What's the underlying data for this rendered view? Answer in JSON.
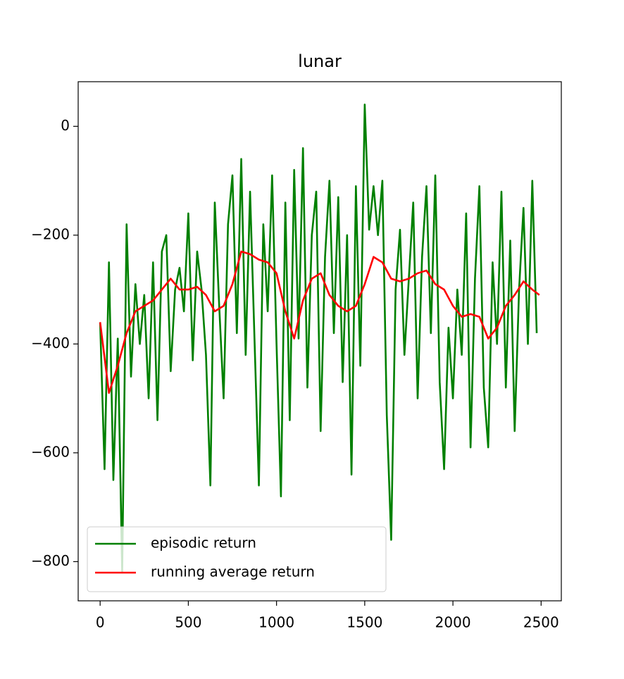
{
  "chart_data": {
    "type": "line",
    "title": "lunar",
    "xlim": [
      -124.5,
      2614.5
    ],
    "xticks": [
      0,
      500,
      1000,
      1500,
      2000,
      2500
    ],
    "ylim": [
      -872,
      82
    ],
    "yticks": [
      {
        "value": -800,
        "label": "−800"
      },
      {
        "value": -600,
        "label": "−600"
      },
      {
        "value": -400,
        "label": "−400"
      },
      {
        "value": -200,
        "label": "−200"
      },
      0
    ],
    "legend": "lower left",
    "series": [
      {
        "name": "episodic return",
        "color": "#008000",
        "x": [
          0,
          25,
          50,
          75,
          100,
          125,
          150,
          175,
          200,
          225,
          250,
          275,
          300,
          325,
          350,
          375,
          400,
          425,
          450,
          475,
          500,
          525,
          550,
          575,
          600,
          625,
          650,
          675,
          700,
          725,
          750,
          775,
          800,
          825,
          850,
          875,
          900,
          925,
          950,
          975,
          1000,
          1025,
          1050,
          1075,
          1100,
          1125,
          1150,
          1175,
          1200,
          1225,
          1250,
          1275,
          1300,
          1325,
          1350,
          1375,
          1400,
          1425,
          1450,
          1475,
          1500,
          1525,
          1550,
          1575,
          1600,
          1625,
          1650,
          1675,
          1700,
          1725,
          1750,
          1775,
          1800,
          1825,
          1850,
          1875,
          1900,
          1925,
          1950,
          1975,
          2000,
          2025,
          2050,
          2075,
          2100,
          2125,
          2150,
          2175,
          2200,
          2225,
          2250,
          2275,
          2300,
          2325,
          2350,
          2375,
          2400,
          2425,
          2450,
          2475
        ],
        "values": [
          -360,
          -630,
          -250,
          -650,
          -390,
          -820,
          -180,
          -460,
          -290,
          -400,
          -310,
          -500,
          -250,
          -540,
          -230,
          -200,
          -450,
          -300,
          -260,
          -340,
          -160,
          -430,
          -230,
          -300,
          -420,
          -660,
          -140,
          -330,
          -500,
          -180,
          -90,
          -380,
          -60,
          -420,
          -120,
          -390,
          -660,
          -180,
          -340,
          -90,
          -400,
          -680,
          -140,
          -540,
          -80,
          -390,
          -40,
          -480,
          -200,
          -120,
          -560,
          -240,
          -100,
          -380,
          -130,
          -470,
          -200,
          -640,
          -110,
          -440,
          40,
          -190,
          -110,
          -200,
          -100,
          -530,
          -760,
          -300,
          -190,
          -420,
          -280,
          -140,
          -500,
          -240,
          -110,
          -380,
          -90,
          -470,
          -630,
          -370,
          -500,
          -300,
          -420,
          -160,
          -590,
          -280,
          -110,
          -480,
          -590,
          -250,
          -400,
          -120,
          -480,
          -210,
          -560,
          -300,
          -150,
          -400,
          -100,
          -380
        ]
      },
      {
        "name": "running average return",
        "color": "#ff0000",
        "x": [
          0,
          50,
          100,
          150,
          200,
          250,
          300,
          350,
          400,
          450,
          500,
          550,
          600,
          650,
          700,
          750,
          800,
          850,
          900,
          950,
          1000,
          1050,
          1100,
          1150,
          1200,
          1250,
          1300,
          1350,
          1400,
          1450,
          1500,
          1550,
          1600,
          1650,
          1700,
          1750,
          1800,
          1850,
          1900,
          1950,
          2000,
          2050,
          2100,
          2150,
          2200,
          2250,
          2300,
          2350,
          2400,
          2450,
          2490
        ],
        "values": [
          -360,
          -490,
          -440,
          -380,
          -340,
          -330,
          -320,
          -300,
          -280,
          -300,
          -300,
          -295,
          -310,
          -340,
          -330,
          -290,
          -230,
          -235,
          -245,
          -250,
          -270,
          -340,
          -390,
          -320,
          -280,
          -270,
          -310,
          -330,
          -340,
          -330,
          -290,
          -240,
          -250,
          -280,
          -285,
          -280,
          -270,
          -265,
          -290,
          -300,
          -330,
          -350,
          -345,
          -350,
          -390,
          -370,
          -330,
          -310,
          -285,
          -300,
          -310
        ]
      }
    ]
  }
}
